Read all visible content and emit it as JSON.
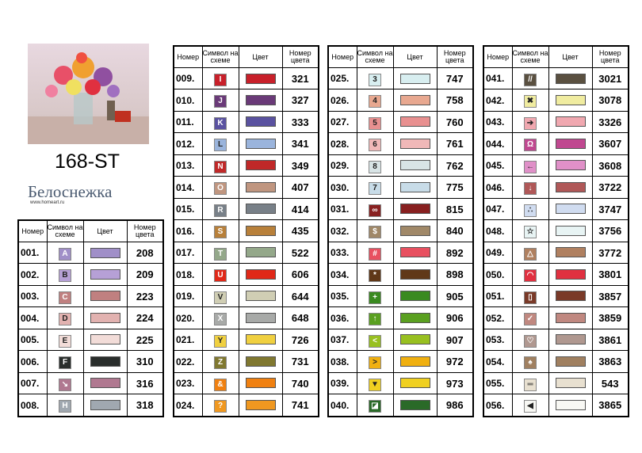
{
  "header": {
    "title": "168-ST",
    "brand": "Белоснежка",
    "url": "www.homeart.ru"
  },
  "columns": [
    "Номер",
    "Символ на схеме",
    "Цвет",
    "Номер цвета"
  ],
  "tables": [
    {
      "rows": [
        {
          "number": "001.",
          "symbol": "A",
          "color": "#a08fc8",
          "code": "208"
        },
        {
          "number": "002.",
          "symbol": "B",
          "color": "#b6a0d6",
          "code": "209"
        },
        {
          "number": "003.",
          "symbol": "C",
          "color": "#c08080",
          "code": "223"
        },
        {
          "number": "004.",
          "symbol": "D",
          "color": "#e2b2b0",
          "code": "224"
        },
        {
          "number": "005.",
          "symbol": "E",
          "color": "#f2dcd8",
          "code": "225"
        },
        {
          "number": "006.",
          "symbol": "F",
          "color": "#2a2e2c",
          "code": "310"
        },
        {
          "number": "007.",
          "symbol": "↘",
          "color": "#b07890",
          "code": "316"
        },
        {
          "number": "008.",
          "symbol": "H",
          "color": "#a0a8b0",
          "code": "318"
        }
      ]
    },
    {
      "rows": [
        {
          "number": "009.",
          "symbol": "I",
          "color": "#c8202a",
          "code": "321"
        },
        {
          "number": "010.",
          "symbol": "J",
          "color": "#6a3a78",
          "code": "327"
        },
        {
          "number": "011.",
          "symbol": "K",
          "color": "#5a52a0",
          "code": "333"
        },
        {
          "number": "012.",
          "symbol": "L",
          "color": "#9ab4dc",
          "code": "341"
        },
        {
          "number": "013.",
          "symbol": "N",
          "color": "#c02828",
          "code": "349"
        },
        {
          "number": "014.",
          "symbol": "O",
          "color": "#c09680",
          "code": "407"
        },
        {
          "number": "015.",
          "symbol": "R",
          "color": "#788088",
          "code": "414"
        },
        {
          "number": "016.",
          "symbol": "S",
          "color": "#b8803a",
          "code": "435"
        },
        {
          "number": "017.",
          "symbol": "T",
          "color": "#94a88a",
          "code": "522"
        },
        {
          "number": "018.",
          "symbol": "U",
          "color": "#e02818",
          "code": "606"
        },
        {
          "number": "019.",
          "symbol": "V",
          "color": "#d0ceb4",
          "code": "644"
        },
        {
          "number": "020.",
          "symbol": "X",
          "color": "#a8aaa8",
          "code": "648"
        },
        {
          "number": "021.",
          "symbol": "Y",
          "color": "#f0d040",
          "code": "726"
        },
        {
          "number": "022.",
          "symbol": "Z",
          "color": "#807830",
          "code": "731"
        },
        {
          "number": "023.",
          "symbol": "&",
          "color": "#f08010",
          "code": "740"
        },
        {
          "number": "024.",
          "symbol": "?",
          "color": "#f09820",
          "code": "741"
        }
      ]
    },
    {
      "rows": [
        {
          "number": "025.",
          "symbol": "3",
          "color": "#d8eef0",
          "code": "747"
        },
        {
          "number": "026.",
          "symbol": "4",
          "color": "#e8a890",
          "code": "758"
        },
        {
          "number": "027.",
          "symbol": "5",
          "color": "#e89090",
          "code": "760"
        },
        {
          "number": "028.",
          "symbol": "6",
          "color": "#f0b8b8",
          "code": "761"
        },
        {
          "number": "029.",
          "symbol": "8",
          "color": "#d8e4e6",
          "code": "762"
        },
        {
          "number": "030.",
          "symbol": "7",
          "color": "#c8dce8",
          "code": "775"
        },
        {
          "number": "031.",
          "symbol": "∞",
          "color": "#882020",
          "code": "815"
        },
        {
          "number": "032.",
          "symbol": "$",
          "color": "#a08868",
          "code": "840"
        },
        {
          "number": "033.",
          "symbol": "#",
          "color": "#e85060",
          "code": "892"
        },
        {
          "number": "034.",
          "symbol": "*",
          "color": "#603818",
          "code": "898"
        },
        {
          "number": "035.",
          "symbol": "+",
          "color": "#3a8a20",
          "code": "905"
        },
        {
          "number": "036.",
          "symbol": "↑",
          "color": "#5aa020",
          "code": "906"
        },
        {
          "number": "037.",
          "symbol": "<",
          "color": "#98c020",
          "code": "907"
        },
        {
          "number": "038.",
          "symbol": ">",
          "color": "#f0b010",
          "code": "972"
        },
        {
          "number": "039.",
          "symbol": "▼",
          "color": "#f0d020",
          "code": "973"
        },
        {
          "number": "040.",
          "symbol": "◪",
          "color": "#2a6a28",
          "code": "986"
        }
      ]
    },
    {
      "rows": [
        {
          "number": "041.",
          "symbol": "//",
          "color": "#5a5040",
          "code": "3021"
        },
        {
          "number": "042.",
          "symbol": "✖",
          "color": "#f0eca0",
          "code": "3078"
        },
        {
          "number": "043.",
          "symbol": "➔",
          "color": "#f0a8b0",
          "code": "3326"
        },
        {
          "number": "044.",
          "symbol": "Ω",
          "color": "#c04890",
          "code": "3607"
        },
        {
          "number": "045.",
          "symbol": "←",
          "color": "#e090c8",
          "code": "3608"
        },
        {
          "number": "046.",
          "symbol": "↓",
          "color": "#b05858",
          "code": "3722"
        },
        {
          "number": "047.",
          "symbol": "∴",
          "color": "#d0dcf0",
          "code": "3747"
        },
        {
          "number": "048.",
          "symbol": "☆",
          "color": "#e8f4f4",
          "code": "3756"
        },
        {
          "number": "049.",
          "symbol": "△",
          "color": "#b08060",
          "code": "3772"
        },
        {
          "number": "050.",
          "symbol": "◠",
          "color": "#e03040",
          "code": "3801"
        },
        {
          "number": "051.",
          "symbol": "▯",
          "color": "#7a3a28",
          "code": "3857"
        },
        {
          "number": "052.",
          "symbol": "✓",
          "color": "#c08880",
          "code": "3859"
        },
        {
          "number": "053.",
          "symbol": "♡",
          "color": "#b09890",
          "code": "3861"
        },
        {
          "number": "054.",
          "symbol": "♠",
          "color": "#a08060",
          "code": "3863"
        },
        {
          "number": "055.",
          "symbol": "═",
          "color": "#e8e0d0",
          "code": "543"
        },
        {
          "number": "056.",
          "symbol": "◀",
          "color": "#f8f8f4",
          "code": "3865"
        }
      ]
    }
  ]
}
